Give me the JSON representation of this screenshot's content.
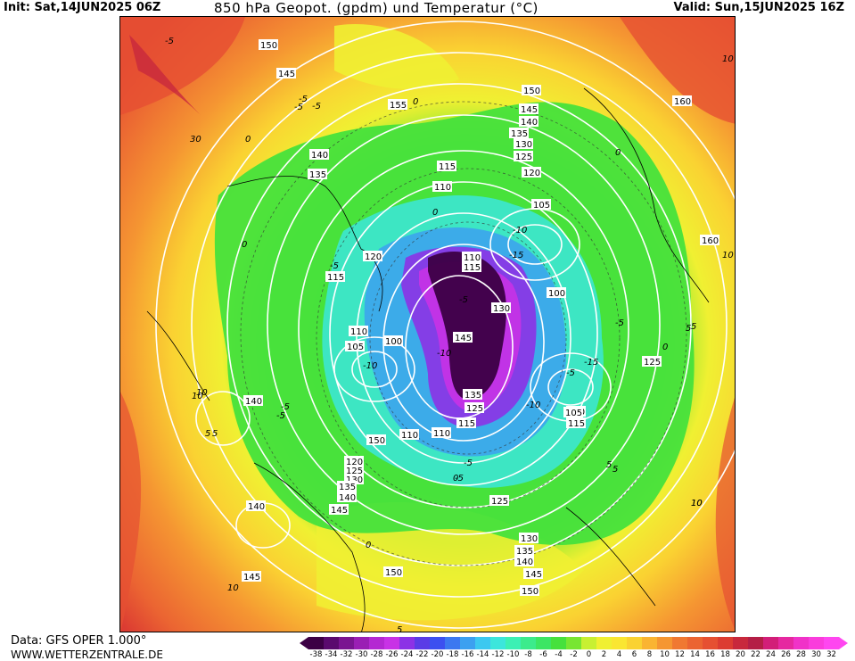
{
  "header": {
    "init": "Init: Sat,14JUN2025 06Z",
    "title": "850 hPa Geopot. (gpdm) und Temperatur (°C)",
    "valid": "Valid: Sun,15JUN2025 16Z"
  },
  "footer": {
    "source": "Data: GFS OPER 1.000°",
    "url": "WWW.WETTERZENTRALE.DE"
  },
  "legend": {
    "ticks": [
      "-38",
      "-34",
      "-32",
      "-30",
      "-28",
      "-26",
      "-24",
      "-22",
      "-20",
      "-18",
      "-16",
      "-14",
      "-12",
      "-10",
      "-8",
      "-6",
      "-4",
      "-2",
      "0",
      "2",
      "4",
      "6",
      "8",
      "10",
      "12",
      "14",
      "16",
      "18",
      "20",
      "22",
      "24",
      "26",
      "28",
      "30",
      "32"
    ],
    "colors": [
      "#3c0045",
      "#5a0a6e",
      "#7a1491",
      "#9a1eb4",
      "#b428d2",
      "#c832e6",
      "#8c32e6",
      "#5a3ce6",
      "#3c50f0",
      "#3c78f0",
      "#3ca0f0",
      "#3cc8f0",
      "#3ce6dc",
      "#3cf0b4",
      "#3ceb8c",
      "#3ce664",
      "#46e13c",
      "#78e632",
      "#c8f032",
      "#f0f032",
      "#fae632",
      "#fad232",
      "#fab432",
      "#f59632",
      "#f07832",
      "#eb6432",
      "#e65032",
      "#dc3c32",
      "#c8283c",
      "#b41e46",
      "#d21e78",
      "#e628a0",
      "#f032c8",
      "#fa3cdc",
      "#ff46f0"
    ]
  },
  "map_labels": {
    "geopotential": [
      "150",
      "145",
      "155",
      "150",
      "145",
      "140",
      "135",
      "130",
      "125",
      "120",
      "115",
      "110",
      "105",
      "100",
      "160",
      "160",
      "140",
      "135",
      "120",
      "115",
      "110",
      "105",
      "100",
      "110",
      "115",
      "130",
      "145",
      "135",
      "125",
      "115",
      "110",
      "140",
      "125",
      "120",
      "115",
      "110",
      "105",
      "125",
      "130",
      "135",
      "140",
      "145",
      "150",
      "140",
      "145",
      "150",
      "120",
      "125",
      "130",
      "135",
      "140",
      "145",
      "150"
    ],
    "temperature": [
      "-5",
      "0",
      "-5",
      "0",
      "-5",
      "0",
      "-10",
      "-15",
      "-10",
      "5",
      "10",
      "-5",
      "-5",
      "0",
      "10",
      "5",
      "-10",
      "-15",
      "-5",
      "0",
      "-5",
      "5",
      "10",
      "-5",
      "0",
      "-5",
      "-10",
      "-5",
      "0",
      "5",
      "10",
      "5",
      "10",
      "5",
      "-5",
      "0",
      "5",
      "10",
      "30",
      "-5",
      "10"
    ]
  }
}
